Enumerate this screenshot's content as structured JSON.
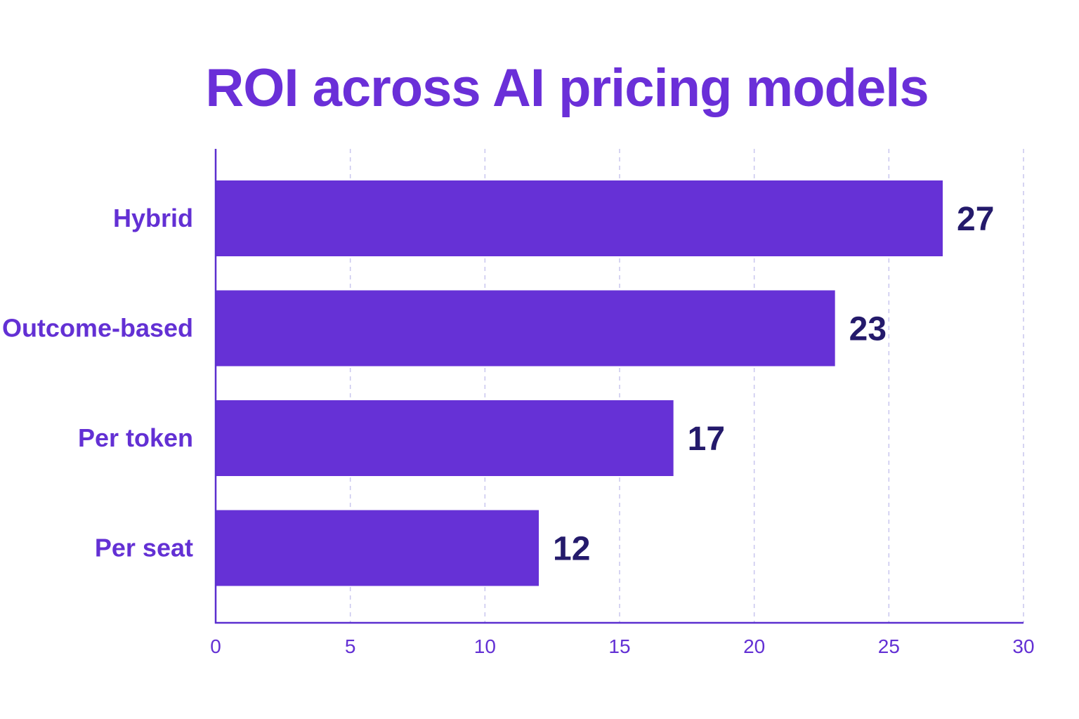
{
  "chart_data": {
    "type": "bar",
    "orientation": "horizontal",
    "title": "ROI across AI pricing models",
    "xlabel": "",
    "ylabel": "",
    "categories": [
      "Hybrid",
      "Outcome-based",
      "Per token",
      "Per seat"
    ],
    "values": [
      27,
      23,
      17,
      12
    ],
    "xlim": [
      0,
      30
    ],
    "xticks": [
      0,
      5,
      10,
      15,
      20,
      25,
      30
    ],
    "grid": "vertical-dashed",
    "legend": "none",
    "colors": {
      "bar": "#6631d6",
      "title": "#6a2fd8",
      "category_label": "#6330d4",
      "value_label": "#241a6b",
      "axis": "#5b2fcf",
      "tick_label": "#6330d4",
      "grid": "#c9c6ee"
    }
  }
}
